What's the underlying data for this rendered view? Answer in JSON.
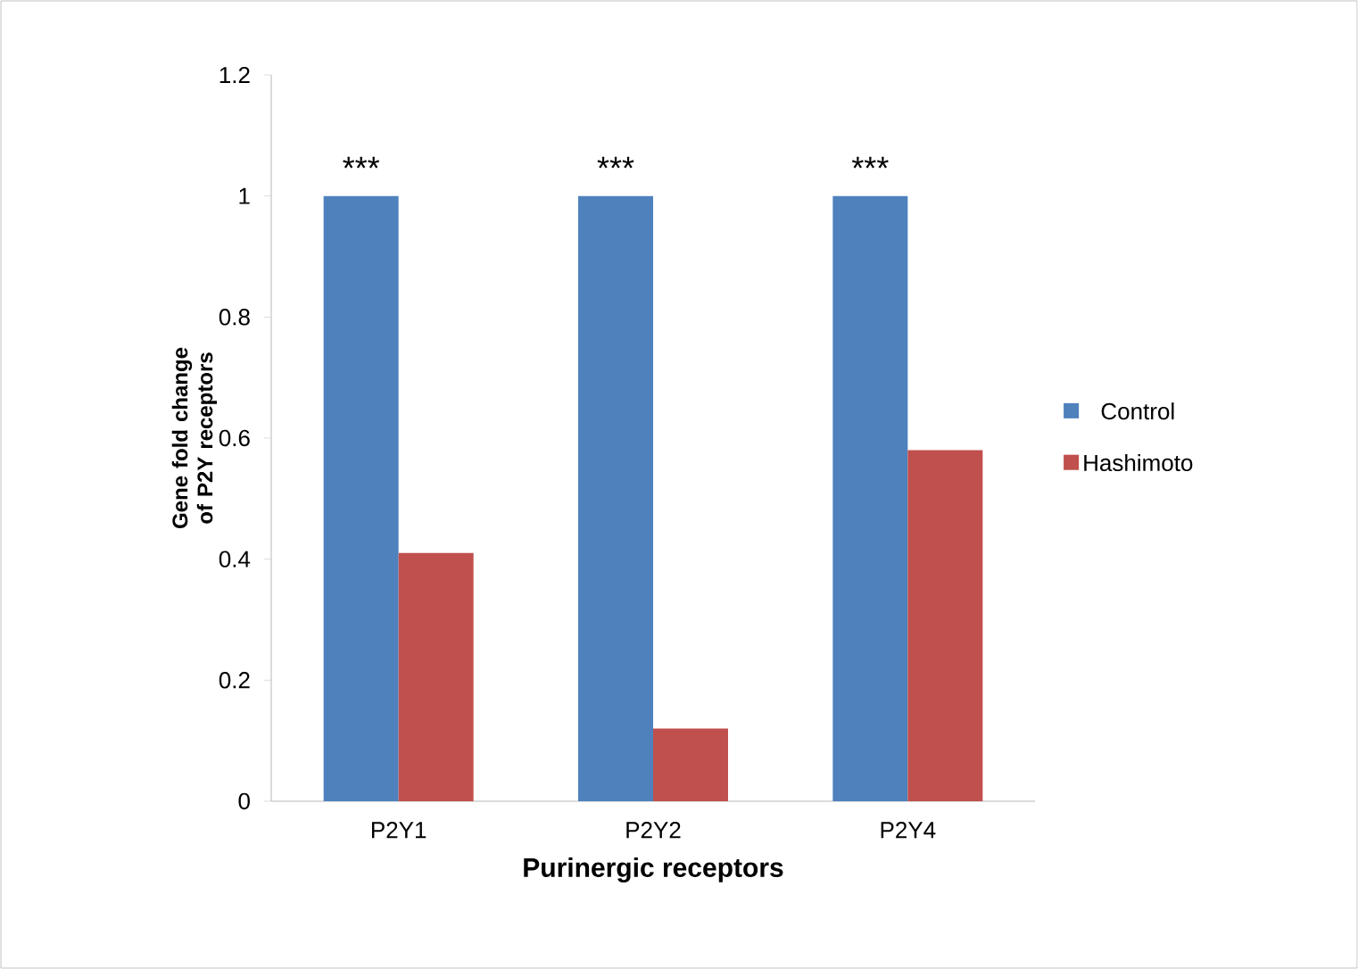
{
  "chart_data": {
    "type": "bar",
    "xlabel": "Purinergic receptors",
    "ylabel": "Gene fold change of P2Y receptors",
    "categories": [
      "P2Y1",
      "P2Y2",
      "P2Y4"
    ],
    "series": [
      {
        "name": "Control",
        "color": "#4f81bd",
        "values": [
          1,
          1,
          1
        ]
      },
      {
        "name": "Hashimoto",
        "color": "#c0504d",
        "values": [
          0.41,
          0.12,
          0.58
        ]
      }
    ],
    "ylim": [
      0,
      1.2
    ],
    "yticks": [
      0,
      0.2,
      0.4,
      0.6,
      0.8,
      1,
      1.2
    ],
    "grid": false,
    "legend": "right",
    "annotations": [
      "***",
      "***",
      "***"
    ]
  }
}
